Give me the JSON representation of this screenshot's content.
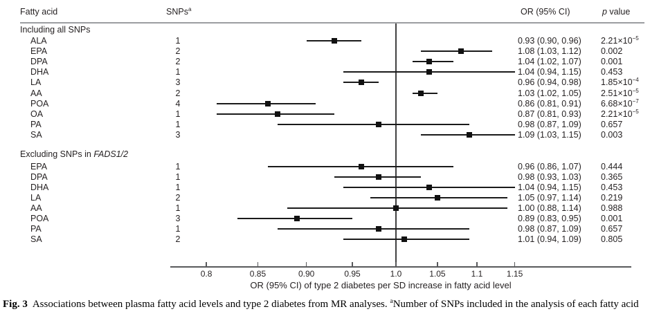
{
  "header": {
    "fatty_acid": "Fatty acid",
    "snps": "SNPs",
    "snps_superscript": "a",
    "or_ci": "OR (95% CI)",
    "p_italic": "p",
    "p_rest": " value"
  },
  "chart_data": {
    "type": "forest",
    "x_scale": "log",
    "reference_line": 1.0,
    "axis_tick_values": [
      0.8,
      0.85,
      0.9,
      0.95,
      1.0,
      1.05,
      1.1,
      1.15
    ],
    "axis_tick_labels": [
      "0.8",
      "0.85",
      "0.90",
      "0.95",
      "1.0",
      "1.05",
      "1.1",
      "1.15"
    ],
    "xlabel": "OR (95% CI) of type 2 diabetes per SD increase in fatty acid level",
    "sections": [
      {
        "title": "Including all SNPs",
        "title_italic": "",
        "rows": [
          {
            "label": "ALA",
            "snps": "1",
            "or": 0.93,
            "lcl": 0.9,
            "ucl": 0.96,
            "or_ci": "0.93 (0.90, 0.96)",
            "p": "2.21×10",
            "p_exp": "−5"
          },
          {
            "label": "EPA",
            "snps": "2",
            "or": 1.08,
            "lcl": 1.03,
            "ucl": 1.12,
            "or_ci": "1.08 (1.03, 1.12)",
            "p": "0.002",
            "p_exp": ""
          },
          {
            "label": "DPA",
            "snps": "2",
            "or": 1.04,
            "lcl": 1.02,
            "ucl": 1.07,
            "or_ci": "1.04 (1.02, 1.07)",
            "p": "0.001",
            "p_exp": ""
          },
          {
            "label": "DHA",
            "snps": "1",
            "or": 1.04,
            "lcl": 0.94,
            "ucl": 1.15,
            "or_ci": "1.04 (0.94, 1.15)",
            "p": "0.453",
            "p_exp": ""
          },
          {
            "label": "LA",
            "snps": "3",
            "or": 0.96,
            "lcl": 0.94,
            "ucl": 0.98,
            "or_ci": "0.96 (0.94, 0.98)",
            "p": "1.85×10",
            "p_exp": "−4"
          },
          {
            "label": "AA",
            "snps": "2",
            "or": 1.03,
            "lcl": 1.02,
            "ucl": 1.05,
            "or_ci": "1.03 (1.02, 1.05)",
            "p": "2.51×10",
            "p_exp": "−5"
          },
          {
            "label": "POA",
            "snps": "4",
            "or": 0.86,
            "lcl": 0.81,
            "ucl": 0.91,
            "or_ci": "0.86 (0.81, 0.91)",
            "p": "6.68×10",
            "p_exp": "−7"
          },
          {
            "label": "OA",
            "snps": "1",
            "or": 0.87,
            "lcl": 0.81,
            "ucl": 0.93,
            "or_ci": "0.87 (0.81, 0.93)",
            "p": "2.21×10",
            "p_exp": "−5"
          },
          {
            "label": "PA",
            "snps": "1",
            "or": 0.98,
            "lcl": 0.87,
            "ucl": 1.09,
            "or_ci": "0.98 (0.87, 1.09)",
            "p": "0.657",
            "p_exp": ""
          },
          {
            "label": "SA",
            "snps": "3",
            "or": 1.09,
            "lcl": 1.03,
            "ucl": 1.15,
            "or_ci": "1.09 (1.03, 1.15)",
            "p": "0.003",
            "p_exp": ""
          }
        ]
      },
      {
        "title": "Excluding SNPs in ",
        "title_italic": "FADS1/2",
        "rows": [
          {
            "label": "EPA",
            "snps": "1",
            "or": 0.96,
            "lcl": 0.86,
            "ucl": 1.07,
            "or_ci": "0.96 (0.86, 1.07)",
            "p": "0.444",
            "p_exp": ""
          },
          {
            "label": "DPA",
            "snps": "1",
            "or": 0.98,
            "lcl": 0.93,
            "ucl": 1.03,
            "or_ci": "0.98 (0.93, 1.03)",
            "p": "0.365",
            "p_exp": ""
          },
          {
            "label": "DHA",
            "snps": "1",
            "or": 1.04,
            "lcl": 0.94,
            "ucl": 1.15,
            "or_ci": "1.04 (0.94, 1.15)",
            "p": "0.453",
            "p_exp": ""
          },
          {
            "label": "LA",
            "snps": "2",
            "or": 1.05,
            "lcl": 0.97,
            "ucl": 1.14,
            "or_ci": "1.05 (0.97, 1.14)",
            "p": "0.219",
            "p_exp": ""
          },
          {
            "label": "AA",
            "snps": "1",
            "or": 1.0,
            "lcl": 0.88,
            "ucl": 1.14,
            "or_ci": "1.00 (0.88, 1.14)",
            "p": "0.988",
            "p_exp": ""
          },
          {
            "label": "POA",
            "snps": "3",
            "or": 0.89,
            "lcl": 0.83,
            "ucl": 0.95,
            "or_ci": "0.89 (0.83, 0.95)",
            "p": "0.001",
            "p_exp": ""
          },
          {
            "label": "PA",
            "snps": "1",
            "or": 0.98,
            "lcl": 0.87,
            "ucl": 1.09,
            "or_ci": "0.98 (0.87, 1.09)",
            "p": "0.657",
            "p_exp": ""
          },
          {
            "label": "SA",
            "snps": "2",
            "or": 1.01,
            "lcl": 0.94,
            "ucl": 1.09,
            "or_ci": "1.01 (0.94, 1.09)",
            "p": "0.805",
            "p_exp": ""
          }
        ]
      }
    ]
  },
  "caption": {
    "label": "Fig. 3",
    "text": "Associations between plasma fatty acid levels and type 2 diabetes from MR analyses. ",
    "footnote_superscript": "a",
    "footnote": "Number of SNPs included in the analysis of each fatty acid"
  },
  "colors": {
    "text": "#231f20",
    "marker": "#111111",
    "whisker": "#1a1a1a",
    "header_rule": "#9b9da0",
    "axis": "#58595b"
  }
}
